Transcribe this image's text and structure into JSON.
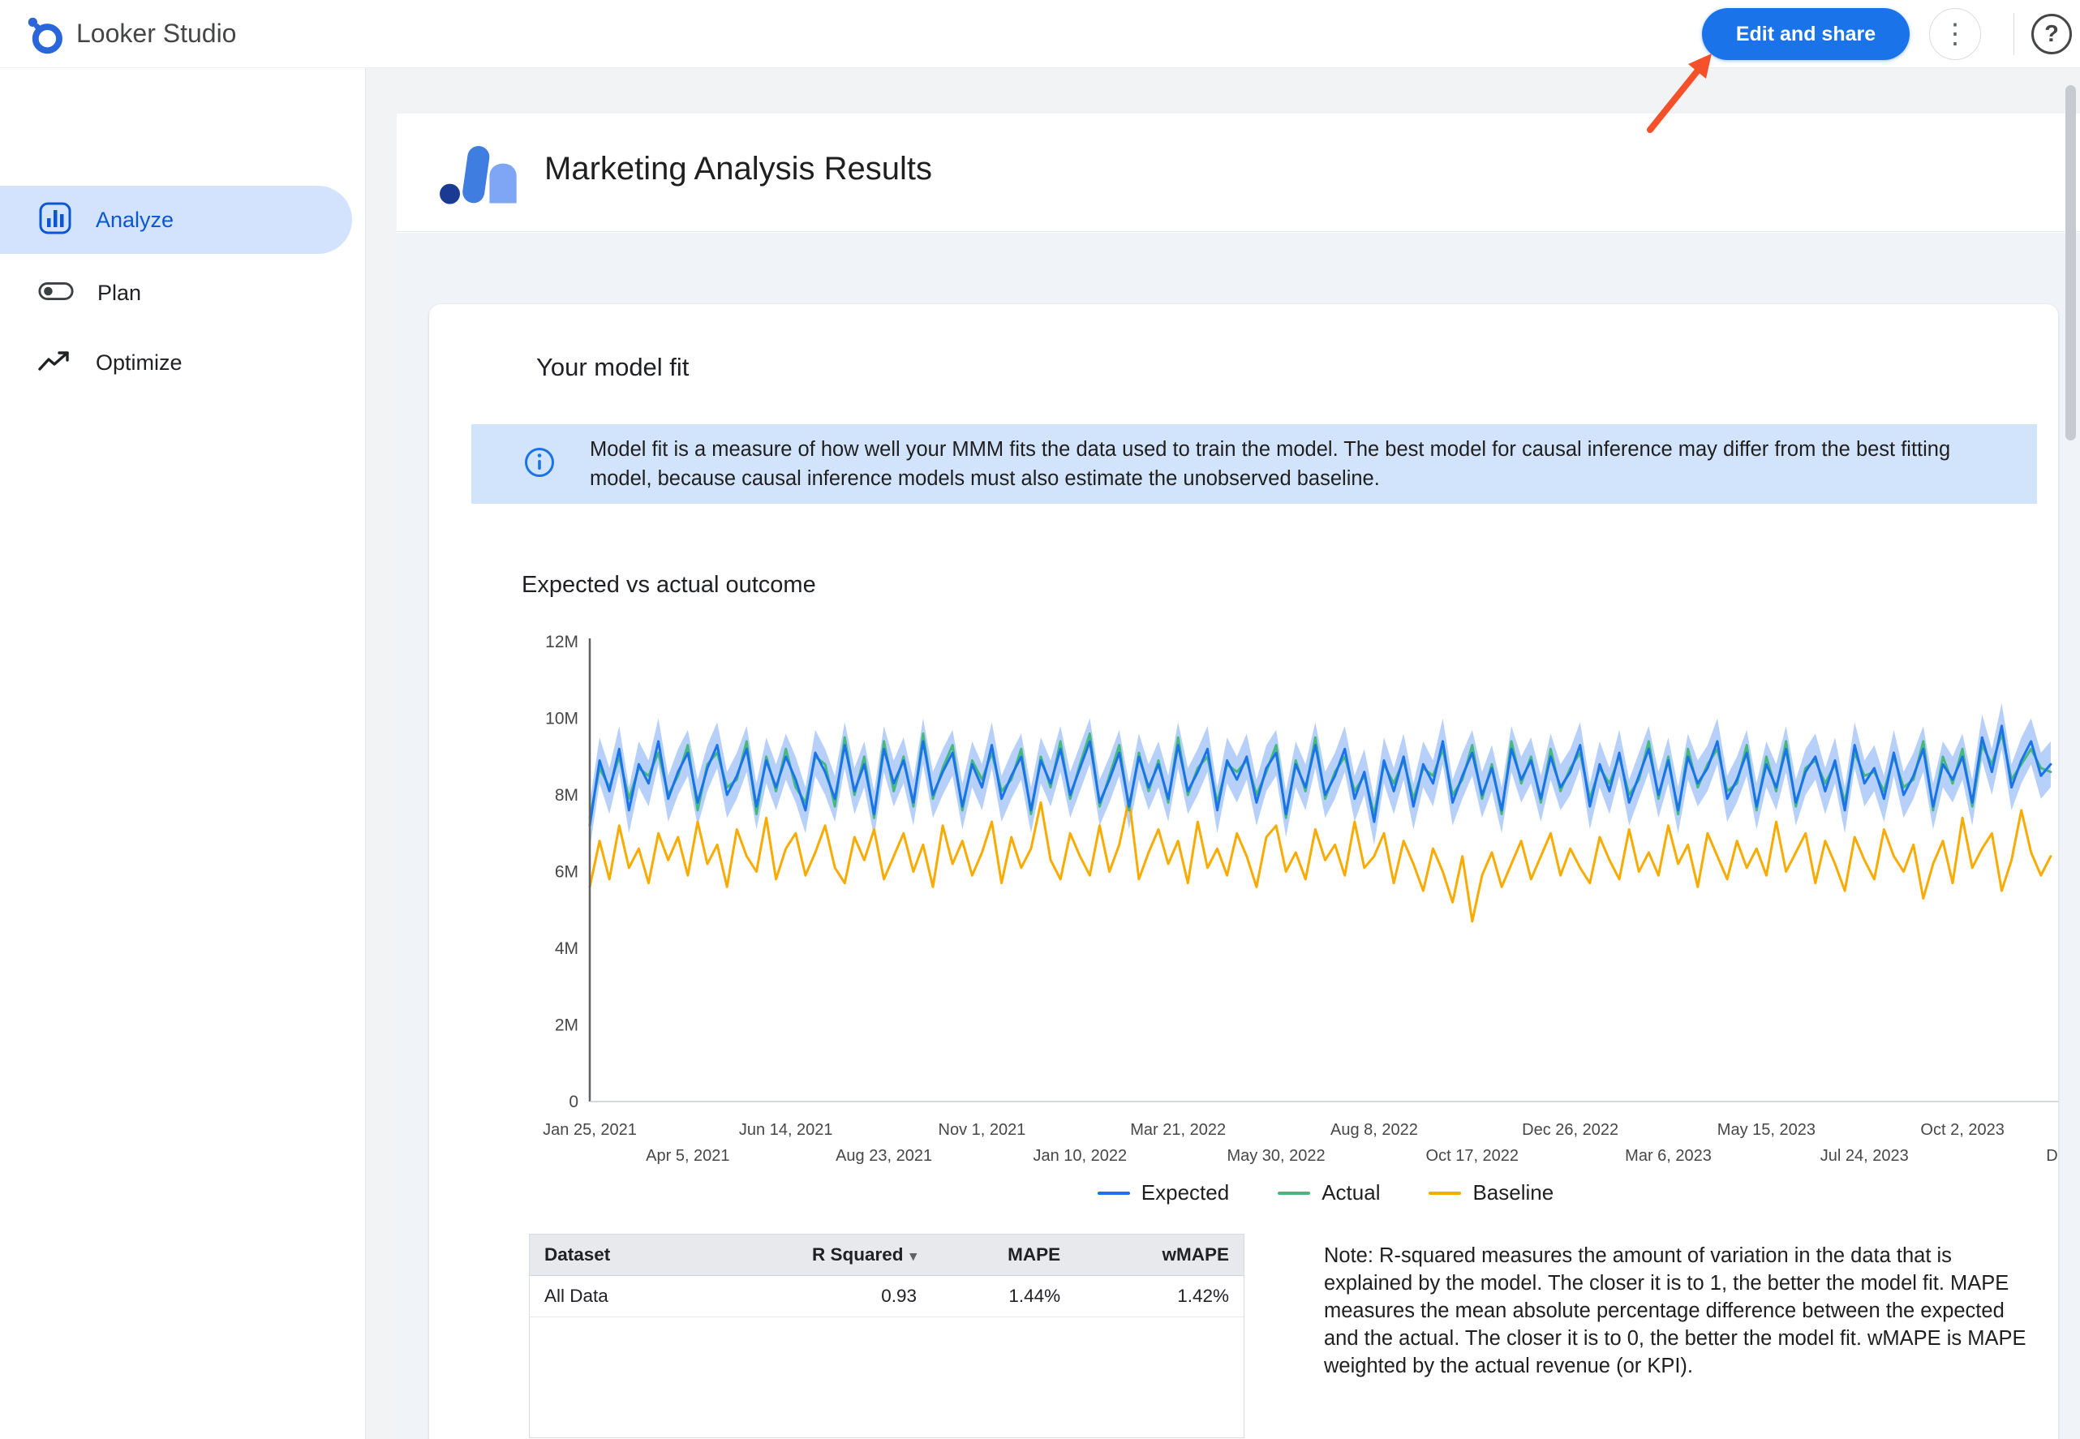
{
  "topbar": {
    "app_title": "Looker Studio",
    "edit_share_label": "Edit and share"
  },
  "icons": {
    "help": "?",
    "more_options": "⋮",
    "sort_desc": "▾",
    "collapse": "‹"
  },
  "colors": {
    "accent_blue": "#1a73e8",
    "selected_nav_bg": "#d3e3fd",
    "selected_nav_text": "#0b57d0",
    "info_banner_bg": "#d2e3fc",
    "annotation_arrow": "#f4502a",
    "confidence_band": "#aecbfa"
  },
  "sidebar": {
    "items": [
      {
        "label": "Analyze",
        "selected": true
      },
      {
        "label": "Plan",
        "selected": false
      },
      {
        "label": "Optimize",
        "selected": false
      }
    ]
  },
  "report": {
    "title": "Marketing Analysis Results",
    "card": {
      "heading": "Your model fit",
      "info_text": "Model fit is a measure of how well your MMM fits the data used to train the model. The best model for causal inference may differ from the best fitting model, because causal inference models must also estimate the unobserved baseline.",
      "chart_title": "Expected vs actual outcome",
      "note": "Note: R-squared measures the amount of variation in the data that is explained by the model. The closer it is to 1, the better the model fit. MAPE measures the mean absolute percentage difference between the expected and the actual. The closer it is to 0, the better the model fit. wMAPE is MAPE weighted by the actual revenue (or KPI)."
    },
    "table": {
      "headers": [
        "Dataset",
        "R Squared",
        "MAPE",
        "wMAPE"
      ],
      "sort_column": "R Squared",
      "rows": [
        [
          "All Data",
          "0.93",
          "1.44%",
          "1.42%"
        ]
      ]
    }
  },
  "chart_data": {
    "type": "line",
    "title": "Expected vs actual outcome",
    "x_unit": "weekly points starting Jan 25, 2021",
    "x_domain_weeks": [
      0,
      150
    ],
    "ylim_millions": [
      0,
      12
    ],
    "y_tick_labels": [
      "0",
      "2M",
      "4M",
      "6M",
      "8M",
      "10M",
      "12M"
    ],
    "x_ticks_row1": {
      "weeks": [
        0,
        20,
        40,
        60,
        80,
        100,
        120,
        140
      ],
      "labels": [
        "Jan 25, 2021",
        "Jun 14, 2021",
        "Nov 1, 2021",
        "Mar 21, 2022",
        "Aug 8, 2022",
        "Dec 26, 2022",
        "May 15, 2023",
        "Oct 2, 2023"
      ]
    },
    "x_ticks_row2": {
      "weeks": [
        10,
        30,
        50,
        70,
        90,
        110,
        130,
        150
      ],
      "labels": [
        "Apr 5, 2021",
        "Aug 23, 2021",
        "Jan 10, 2022",
        "May 30, 2022",
        "Oct 17, 2022",
        "Mar 6, 2023",
        "Jul 24, 2023",
        "Dec"
      ]
    },
    "band": {
      "series": "Expected",
      "half_width_millions": 0.6,
      "color": "#aecbfa"
    },
    "legend_position": "bottom",
    "grid": false,
    "series": [
      {
        "name": "Expected",
        "color": "#1a73e8",
        "values_millions": [
          7.2,
          8.9,
          8.1,
          9.2,
          7.6,
          8.8,
          8.3,
          9.4,
          7.9,
          8.6,
          9.1,
          7.8,
          8.7,
          9.3,
          8.0,
          8.5,
          9.2,
          7.7,
          8.9,
          8.2,
          9.0,
          8.4,
          7.6,
          9.1,
          8.6,
          7.9,
          9.3,
          8.1,
          8.8,
          7.5,
          9.2,
          8.3,
          8.9,
          7.8,
          9.4,
          8.0,
          8.6,
          9.1,
          7.7,
          8.8,
          8.2,
          9.3,
          7.9,
          8.5,
          9.0,
          7.6,
          8.9,
          8.3,
          9.2,
          8.0,
          8.7,
          9.4,
          7.8,
          8.4,
          9.1,
          7.7,
          9.0,
          8.2,
          8.8,
          7.9,
          9.3,
          8.1,
          8.6,
          9.2,
          7.6,
          8.9,
          8.4,
          9.0,
          7.8,
          8.7,
          9.1,
          7.5,
          8.8,
          8.2,
          9.3,
          8.0,
          8.5,
          9.2,
          7.9,
          8.6,
          7.3,
          8.9,
          8.1,
          9.0,
          7.7,
          8.8,
          8.3,
          9.4,
          7.8,
          8.5,
          9.1,
          8.0,
          8.7,
          7.6,
          9.2,
          8.4,
          8.9,
          7.9,
          9.0,
          8.2,
          8.6,
          9.3,
          7.7,
          8.8,
          8.1,
          9.1,
          7.8,
          8.5,
          9.2,
          8.0,
          8.9,
          7.6,
          9.0,
          8.3,
          8.7,
          9.4,
          7.9,
          8.4,
          9.1,
          7.7,
          8.8,
          8.2,
          9.2,
          7.8,
          8.6,
          9.0,
          8.1,
          8.9,
          7.6,
          9.3,
          8.3,
          8.7,
          7.9,
          9.1,
          8.0,
          8.5,
          9.2,
          7.7,
          8.8,
          8.4,
          9.0,
          7.8,
          9.5,
          8.6,
          9.8,
          8.2,
          8.9,
          9.4,
          8.5,
          8.8
        ]
      },
      {
        "name": "Actual",
        "color": "#45b880",
        "values_millions": [
          7.4,
          8.7,
          8.2,
          9.0,
          7.9,
          8.7,
          8.5,
          9.1,
          8.0,
          8.5,
          9.3,
          7.6,
          8.8,
          9.1,
          8.2,
          8.4,
          9.4,
          7.5,
          9.0,
          8.1,
          9.2,
          8.2,
          7.8,
          9.0,
          8.8,
          7.7,
          9.5,
          8.0,
          9.0,
          7.4,
          9.4,
          8.1,
          9.0,
          7.7,
          9.6,
          7.9,
          8.7,
          9.3,
          7.6,
          8.9,
          8.4,
          9.1,
          8.1,
          8.4,
          9.2,
          7.5,
          9.0,
          8.2,
          9.4,
          7.9,
          8.8,
          9.6,
          7.7,
          8.5,
          9.3,
          7.6,
          9.1,
          8.1,
          8.9,
          7.8,
          9.5,
          8.0,
          8.7,
          9.0,
          7.8,
          8.8,
          8.6,
          8.9,
          8.0,
          8.6,
          9.3,
          7.4,
          8.9,
          8.1,
          9.5,
          7.9,
          8.6,
          9.0,
          8.1,
          8.5,
          7.5,
          8.8,
          8.3,
          8.9,
          7.9,
          8.7,
          8.5,
          9.2,
          8.0,
          8.4,
          9.3,
          7.9,
          8.8,
          7.5,
          9.4,
          8.3,
          9.0,
          7.8,
          9.2,
          8.1,
          8.7,
          9.1,
          7.9,
          8.7,
          8.3,
          9.0,
          8.0,
          8.4,
          9.4,
          7.9,
          9.0,
          7.5,
          9.2,
          8.2,
          8.8,
          9.2,
          8.1,
          8.3,
          9.3,
          7.6,
          9.0,
          8.1,
          9.4,
          7.7,
          8.7,
          8.9,
          8.3,
          8.8,
          7.8,
          9.1,
          8.5,
          8.6,
          8.1,
          9.0,
          8.2,
          8.4,
          9.4,
          7.6,
          9.0,
          8.3,
          9.2,
          7.7,
          9.3,
          8.8,
          9.6,
          8.4,
          8.8,
          9.2,
          8.7,
          8.6
        ]
      },
      {
        "name": "Baseline",
        "color": "#f9ab00",
        "values_millions": [
          5.6,
          6.8,
          5.8,
          7.2,
          6.1,
          6.6,
          5.7,
          7.0,
          6.3,
          6.9,
          5.9,
          7.3,
          6.2,
          6.7,
          5.6,
          7.1,
          6.4,
          6.0,
          7.4,
          5.8,
          6.6,
          7.0,
          5.9,
          6.5,
          7.2,
          6.1,
          5.7,
          6.9,
          6.3,
          7.1,
          5.8,
          6.4,
          7.0,
          6.0,
          6.7,
          5.6,
          7.2,
          6.2,
          6.8,
          5.9,
          6.5,
          7.3,
          5.7,
          6.9,
          6.1,
          6.6,
          7.8,
          6.3,
          5.8,
          7.0,
          6.4,
          5.9,
          7.2,
          6.0,
          6.7,
          7.9,
          5.8,
          6.5,
          7.1,
          6.2,
          6.8,
          5.7,
          7.3,
          6.1,
          6.6,
          5.9,
          7.0,
          6.4,
          5.6,
          6.9,
          7.2,
          6.0,
          6.5,
          5.8,
          7.1,
          6.3,
          6.7,
          5.9,
          7.3,
          6.1,
          6.4,
          7.0,
          5.7,
          6.8,
          6.2,
          5.5,
          6.6,
          6.0,
          5.2,
          6.4,
          4.7,
          5.9,
          6.5,
          5.6,
          6.2,
          6.8,
          5.8,
          6.4,
          7.0,
          5.9,
          6.6,
          6.1,
          5.7,
          6.9,
          6.3,
          5.8,
          7.1,
          6.0,
          6.5,
          5.9,
          7.2,
          6.2,
          6.7,
          5.6,
          7.0,
          6.4,
          5.8,
          6.8,
          6.1,
          6.6,
          5.9,
          7.3,
          6.0,
          6.5,
          7.0,
          5.7,
          6.8,
          6.2,
          5.5,
          6.9,
          6.3,
          5.8,
          7.1,
          6.4,
          6.0,
          6.7,
          5.3,
          6.2,
          6.8,
          5.7,
          7.4,
          6.1,
          6.6,
          7.0,
          5.5,
          6.3,
          7.6,
          6.5,
          5.9,
          6.4
        ]
      }
    ]
  }
}
